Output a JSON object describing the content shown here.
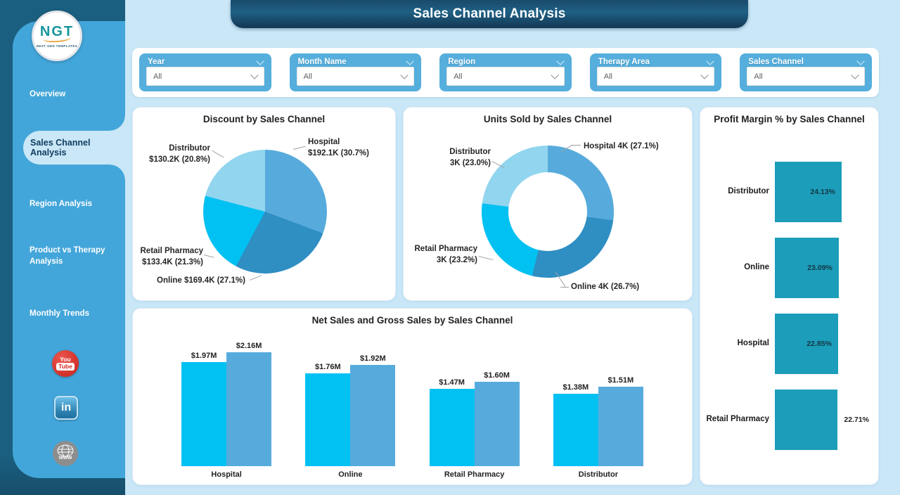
{
  "page_title": "Sales Channel Analysis",
  "colors": {
    "canvas": "#C9E7F7",
    "sidebar": "#43A6DA",
    "sidebar_dark": "#1B5F80",
    "filter_card": "#55AEDC",
    "net_sales": "#00C1F2",
    "gross_sales": "#57ABDC",
    "profit_bar": "#1C9DB9"
  },
  "sidebar": {
    "logo": {
      "text": "NGT",
      "caption": "NEXT GEN TEMPLATES"
    },
    "items": [
      {
        "label": "Overview",
        "active": false
      },
      {
        "label": "Sales Channel Analysis",
        "active": true
      },
      {
        "label": "Region Analysis",
        "active": false
      },
      {
        "label": "Product vs Therapy Analysis",
        "active": false
      },
      {
        "label": "Monthly Trends",
        "active": false
      }
    ],
    "social": [
      "YouTube",
      "LinkedIn",
      "Website"
    ],
    "website_icon_text": "www"
  },
  "filters": [
    {
      "label": "Year",
      "value": "All"
    },
    {
      "label": "Month Name",
      "value": "All"
    },
    {
      "label": "Region",
      "value": "All"
    },
    {
      "label": "Therapy Area",
      "value": "All"
    },
    {
      "label": "Sales Channel",
      "value": "All"
    }
  ],
  "chart_data": [
    {
      "type": "pie",
      "title": "Discount by Sales Channel",
      "categories": [
        "Hospital",
        "Online",
        "Retail Pharmacy",
        "Distributor"
      ],
      "values_k_usd": [
        192.1,
        169.4,
        133.4,
        130.2
      ],
      "percents": [
        30.7,
        27.1,
        21.3,
        20.8
      ],
      "colors": [
        "#57ABDC",
        "#2F8EC2",
        "#00C1F2",
        "#92D5EF"
      ],
      "callouts": [
        {
          "line1": "Hospital",
          "line2": "$192.1K (30.7%)"
        },
        {
          "line1": "Distributor",
          "line2": "$130.2K (20.8%)"
        },
        {
          "line1": "Retail Pharmacy",
          "line2": "$133.4K (21.3%)"
        },
        {
          "line1": "Online $169.4K (27.1%)",
          "line2": ""
        }
      ]
    },
    {
      "type": "donut",
      "title": "Units Sold by Sales Channel",
      "categories": [
        "Hospital",
        "Online",
        "Retail Pharmacy",
        "Distributor"
      ],
      "values": [
        "4K",
        "4K",
        "3K",
        "3K"
      ],
      "percents": [
        27.1,
        26.7,
        23.2,
        23.0
      ],
      "colors": [
        "#57ABDC",
        "#2F8EC2",
        "#00C1F2",
        "#92D5EF"
      ],
      "callouts": [
        {
          "line1": "Hospital 4K (27.1%)",
          "line2": ""
        },
        {
          "line1": "Distributor",
          "line2": "3K (23.0%)"
        },
        {
          "line1": "Retail Pharmacy",
          "line2": "3K (23.2%)"
        },
        {
          "line1": "Online 4K (26.7%)",
          "line2": ""
        }
      ]
    },
    {
      "type": "bar",
      "title": "Net Sales and Gross Sales by Sales Channel",
      "categories": [
        "Hospital",
        "Online",
        "Retail Pharmacy",
        "Distributor"
      ],
      "series": [
        {
          "name": "Net Sales",
          "values": [
            1.97,
            1.76,
            1.47,
            1.38
          ],
          "labels": [
            "$1.97M",
            "$1.76M",
            "$1.47M",
            "$1.38M"
          ],
          "color": "#00C1F2"
        },
        {
          "name": "Gross Sales",
          "values": [
            2.16,
            1.92,
            1.6,
            1.51
          ],
          "labels": [
            "$2.16M",
            "$1.92M",
            "$1.60M",
            "$1.51M"
          ],
          "color": "#57ABDC"
        }
      ],
      "ylim": [
        0,
        2.16
      ],
      "grid": false,
      "legend": "none"
    },
    {
      "type": "bar",
      "orientation": "horizontal",
      "title": "Profit Margin % by Sales Channel",
      "categories": [
        "Distributor",
        "Online",
        "Hospital",
        "Retail Pharmacy"
      ],
      "values": [
        24.13,
        23.09,
        22.85,
        22.71
      ],
      "labels": [
        "24.13%",
        "23.09%",
        "22.85%",
        "22.71%"
      ],
      "color": "#1C9DB9",
      "grid": false,
      "legend": "none"
    }
  ]
}
